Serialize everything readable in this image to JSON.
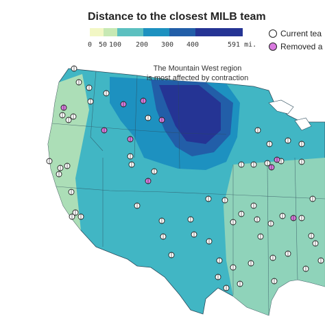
{
  "title": "Distance to the closest MILB team",
  "legend": {
    "ticks": [
      "0",
      "50",
      "100",
      "200",
      "300",
      "400",
      "591 mi."
    ],
    "colors": [
      "#f2f7c5",
      "#c7e9b4",
      "#5cc0c0",
      "#1d91c0",
      "#225ea8",
      "#253494"
    ]
  },
  "annotation": {
    "line1": "The Mountain West region",
    "line2": "is most affected by contraction"
  },
  "key": {
    "current": "Current tea",
    "removed": "Removed a"
  },
  "palette": {
    "land_base": "#41b6c4",
    "state_border": "#2b4a5a",
    "current_fill": "#ffffff",
    "removed_fill": "#d97adf"
  }
}
